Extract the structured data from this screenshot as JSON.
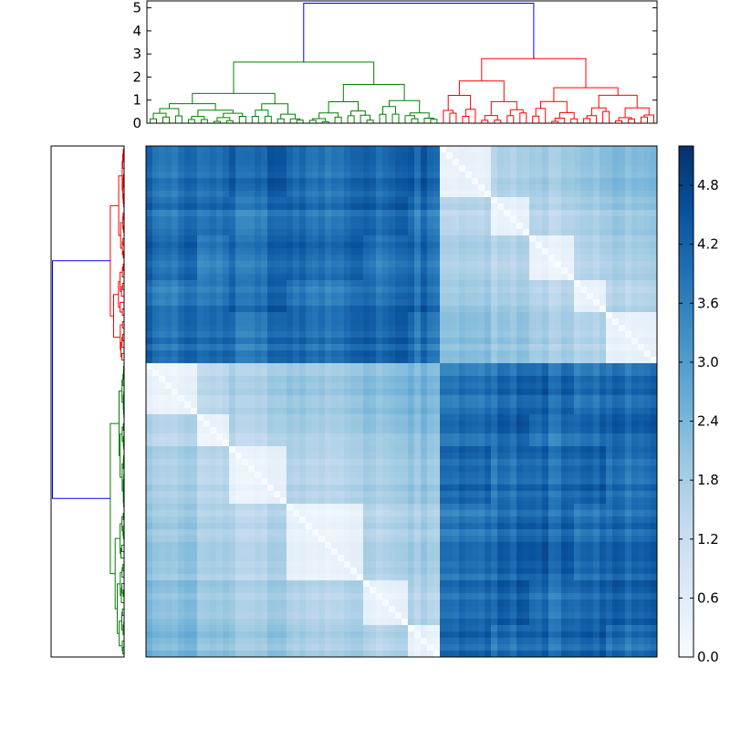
{
  "chart_data": {
    "type": "heatmap",
    "title": "",
    "colormap": "Blues",
    "colors": {
      "cluster_top": "#0000ff",
      "cluster_a": "#008000",
      "cluster_b": "#ff0000",
      "axis": "#000000"
    },
    "top_dendrogram": {
      "ylim": [
        0,
        5.3
      ],
      "yticks": [
        "0",
        "1",
        "2",
        "3",
        "4",
        "5"
      ],
      "root_height": 5.2,
      "cluster_a_height": 2.65,
      "cluster_b_height": 2.8
    },
    "left_dendrogram": {
      "root_height": 5.2
    },
    "colorbar": {
      "range": [
        0,
        5.2
      ],
      "ticks": [
        "0.0",
        "0.6",
        "1.2",
        "1.8",
        "2.4",
        "3.0",
        "3.6",
        "4.2",
        "4.8"
      ]
    },
    "heatmap": {
      "n": 80,
      "column_order": "cluster_a then cluster_b",
      "row_order": "cluster_b (top) then cluster_a (bottom)",
      "within_cluster_distance": "0.1 - 2.2",
      "between_cluster_distance": "3.0 - 5.2",
      "diagonal": 0
    }
  }
}
